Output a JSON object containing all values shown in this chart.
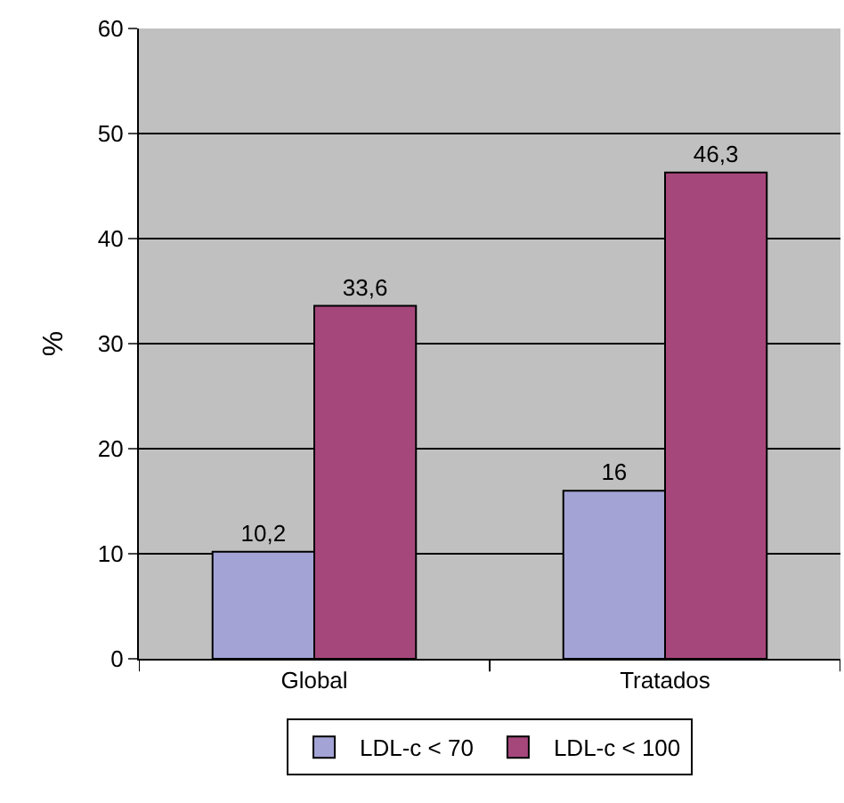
{
  "chart_data": {
    "type": "bar",
    "ylabel": "%",
    "categories": [
      "Global",
      "Tratados"
    ],
    "series": [
      {
        "name": "LDL-c < 70",
        "color": "#a3a3d6",
        "values": [
          10.2,
          16
        ],
        "value_labels": [
          "10,2",
          "16"
        ]
      },
      {
        "name": "LDL-c < 100",
        "color": "#a6477c",
        "values": [
          33.6,
          46.3
        ],
        "value_labels": [
          "33,6",
          "46,3"
        ]
      }
    ],
    "ylim": [
      0,
      60
    ],
    "yticks": [
      0,
      10,
      20,
      30,
      40,
      50,
      60
    ],
    "grid": "y",
    "legend": "bottom"
  }
}
